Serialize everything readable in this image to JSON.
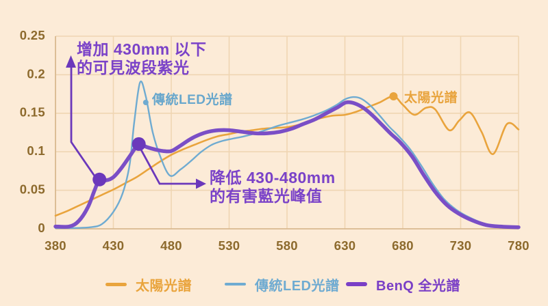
{
  "page": {
    "background": "#fcebd7"
  },
  "colors": {
    "sun": "#e9a43d",
    "led": "#6fabd1",
    "benq": "#7a4ec6",
    "benq_dark": "#6b38bb",
    "annotation_text": "#7a42c8",
    "tick_text": "#8d6a2d",
    "grid": "#efd5b2",
    "axis": "#d9b98f"
  },
  "chart_data": {
    "type": "line",
    "title": "",
    "xlabel": "",
    "ylabel": "",
    "xlim": [
      380,
      780
    ],
    "ylim": [
      0,
      0.25
    ],
    "grid": true,
    "x_ticks": [
      380,
      430,
      480,
      530,
      580,
      630,
      680,
      730,
      780
    ],
    "x_tick_labels": [
      "380",
      "430",
      "480",
      "530",
      "580",
      "630",
      "680",
      "730",
      "780"
    ],
    "y_ticks": [
      0,
      0.05,
      0.1,
      0.15,
      0.2,
      0.25
    ],
    "y_tick_labels": [
      "0",
      "0.05",
      "0.1",
      "0.15",
      "0.2",
      "0.25"
    ],
    "legend_position": "bottom",
    "series": [
      {
        "id": "sun",
        "name": "太陽光譜",
        "color": "#e9a43d",
        "width": 2.6,
        "points": [
          [
            380,
            0.017
          ],
          [
            390,
            0.023
          ],
          [
            400,
            0.03
          ],
          [
            410,
            0.037
          ],
          [
            420,
            0.044
          ],
          [
            430,
            0.051
          ],
          [
            440,
            0.059
          ],
          [
            450,
            0.067
          ],
          [
            460,
            0.077
          ],
          [
            470,
            0.087
          ],
          [
            480,
            0.096
          ],
          [
            490,
            0.103
          ],
          [
            500,
            0.109
          ],
          [
            510,
            0.115
          ],
          [
            520,
            0.12
          ],
          [
            530,
            0.123
          ],
          [
            540,
            0.126
          ],
          [
            550,
            0.128
          ],
          [
            560,
            0.13
          ],
          [
            570,
            0.131
          ],
          [
            580,
            0.132
          ],
          [
            590,
            0.135
          ],
          [
            600,
            0.14
          ],
          [
            610,
            0.144
          ],
          [
            620,
            0.147
          ],
          [
            630,
            0.148
          ],
          [
            640,
            0.152
          ],
          [
            650,
            0.158
          ],
          [
            660,
            0.164
          ],
          [
            672,
            0.172
          ],
          [
            680,
            0.161
          ],
          [
            690,
            0.148
          ],
          [
            700,
            0.157
          ],
          [
            708,
            0.155
          ],
          [
            720,
            0.128
          ],
          [
            729,
            0.141
          ],
          [
            738,
            0.151
          ],
          [
            748,
            0.126
          ],
          [
            758,
            0.097
          ],
          [
            770,
            0.136
          ],
          [
            780,
            0.129
          ]
        ]
      },
      {
        "id": "led",
        "name": "傳統LED光譜",
        "color": "#6fabd1",
        "width": 2.4,
        "points": [
          [
            380,
            0.001
          ],
          [
            395,
            0.001
          ],
          [
            410,
            0.002
          ],
          [
            420,
            0.006
          ],
          [
            430,
            0.022
          ],
          [
            438,
            0.046
          ],
          [
            444,
            0.083
          ],
          [
            448,
            0.138
          ],
          [
            453,
            0.19
          ],
          [
            458,
            0.172
          ],
          [
            464,
            0.125
          ],
          [
            471,
            0.092
          ],
          [
            479,
            0.069
          ],
          [
            488,
            0.077
          ],
          [
            497,
            0.088
          ],
          [
            506,
            0.1
          ],
          [
            515,
            0.109
          ],
          [
            524,
            0.114
          ],
          [
            533,
            0.117
          ],
          [
            543,
            0.12
          ],
          [
            553,
            0.124
          ],
          [
            563,
            0.129
          ],
          [
            573,
            0.134
          ],
          [
            583,
            0.138
          ],
          [
            593,
            0.142
          ],
          [
            603,
            0.147
          ],
          [
            613,
            0.153
          ],
          [
            623,
            0.161
          ],
          [
            630,
            0.168
          ],
          [
            637,
            0.171
          ],
          [
            644,
            0.169
          ],
          [
            652,
            0.16
          ],
          [
            660,
            0.147
          ],
          [
            668,
            0.133
          ],
          [
            676,
            0.121
          ],
          [
            686,
            0.104
          ],
          [
            696,
            0.082
          ],
          [
            706,
            0.058
          ],
          [
            716,
            0.038
          ],
          [
            726,
            0.025
          ],
          [
            736,
            0.016
          ],
          [
            748,
            0.008
          ],
          [
            760,
            0.004
          ],
          [
            780,
            0.002
          ]
        ]
      },
      {
        "id": "benq",
        "name": "BenQ 全光譜",
        "color": "#7a4ec6",
        "width": 5.5,
        "points": [
          [
            380,
            0.003
          ],
          [
            392,
            0.003
          ],
          [
            400,
            0.01
          ],
          [
            408,
            0.028
          ],
          [
            414,
            0.051
          ],
          [
            418,
            0.064
          ],
          [
            424,
            0.063
          ],
          [
            430,
            0.067
          ],
          [
            437,
            0.079
          ],
          [
            444,
            0.094
          ],
          [
            450,
            0.107
          ],
          [
            453,
            0.11
          ],
          [
            459,
            0.106
          ],
          [
            466,
            0.103
          ],
          [
            473,
            0.101
          ],
          [
            480,
            0.101
          ],
          [
            488,
            0.108
          ],
          [
            496,
            0.116
          ],
          [
            504,
            0.122
          ],
          [
            512,
            0.126
          ],
          [
            521,
            0.128
          ],
          [
            530,
            0.128
          ],
          [
            541,
            0.126
          ],
          [
            552,
            0.124
          ],
          [
            563,
            0.124
          ],
          [
            574,
            0.126
          ],
          [
            584,
            0.13
          ],
          [
            594,
            0.136
          ],
          [
            604,
            0.142
          ],
          [
            614,
            0.15
          ],
          [
            624,
            0.158
          ],
          [
            631,
            0.164
          ],
          [
            638,
            0.163
          ],
          [
            646,
            0.157
          ],
          [
            654,
            0.147
          ],
          [
            662,
            0.135
          ],
          [
            670,
            0.123
          ],
          [
            678,
            0.112
          ],
          [
            688,
            0.094
          ],
          [
            698,
            0.07
          ],
          [
            708,
            0.048
          ],
          [
            718,
            0.031
          ],
          [
            728,
            0.02
          ],
          [
            740,
            0.011
          ],
          [
            752,
            0.005
          ],
          [
            764,
            0.003
          ],
          [
            780,
            0.002
          ]
        ]
      }
    ],
    "markers": [
      {
        "id": "benq-violet-dot",
        "series": "benq",
        "x": 418,
        "y": 0.064,
        "r": 10,
        "color": "#6b38bb"
      },
      {
        "id": "benq-blue-peak-dot",
        "series": "benq",
        "x": 452,
        "y": 0.11,
        "r": 10,
        "color": "#6b38bb"
      },
      {
        "id": "sun-peak-dot",
        "series": "sun",
        "x": 672,
        "y": 0.172,
        "r": 6,
        "color": "#e9a43d"
      },
      {
        "id": "led-label-dot",
        "series": "led",
        "x": 458,
        "y": 0.164,
        "r": 4,
        "color": "#6fabd1"
      }
    ]
  },
  "annotations": {
    "increase_violet": {
      "line1": "增加 430mm 以下",
      "line2": "的可見波段紫光",
      "color": "#7a42c8"
    },
    "reduce_blue": {
      "line1": "降低 430-480mm",
      "line2": "的有害藍光峰值",
      "color": "#7a42c8"
    },
    "led_label": {
      "text": "傳統LED光譜",
      "color": "#68a7cc"
    },
    "sun_label": {
      "text": "太陽光譜",
      "color": "#e8a33c"
    }
  },
  "legend": {
    "items": [
      {
        "label": "太陽光譜",
        "color": "#e9a43d"
      },
      {
        "label": "傳統LED光譜",
        "color": "#6fabd1"
      },
      {
        "label": "BenQ 全光譜",
        "color": "#7a3fc6"
      }
    ]
  }
}
